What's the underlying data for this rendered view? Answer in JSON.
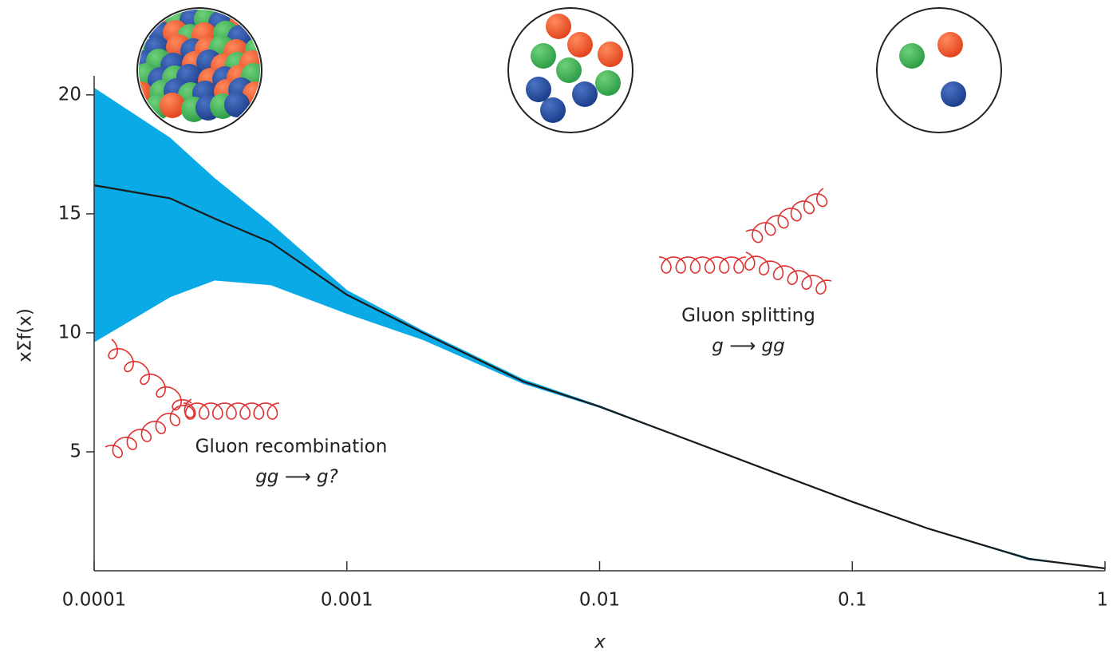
{
  "chart_data": {
    "type": "line",
    "x_label": "x",
    "y_label": "xΣf(x)",
    "x": [
      0.0001,
      0.0002,
      0.0003,
      0.0005,
      0.001,
      0.002,
      0.005,
      0.01,
      0.02,
      0.05,
      0.1,
      0.2,
      0.5,
      1
    ],
    "series": [
      {
        "color": "#1a1a1a",
        "values": [
          16.2,
          15.65,
          14.8,
          13.8,
          11.6,
          10.0,
          7.95,
          6.9,
          5.7,
          4.1,
          2.9,
          1.77,
          0.5,
          0.1
        ],
        "band_color": "#0aaae6",
        "upper": [
          20.3,
          18.2,
          16.5,
          14.6,
          11.8,
          10.1,
          8.05,
          6.95,
          5.72,
          4.12,
          2.92,
          1.8,
          0.55,
          0.1
        ],
        "lower": [
          9.6,
          11.5,
          12.2,
          12.0,
          10.8,
          9.7,
          7.85,
          6.85,
          5.66,
          4.07,
          2.88,
          1.74,
          0.45,
          0.1
        ]
      }
    ],
    "xlog": true,
    "xlim": [
      0.0001,
      1
    ],
    "xticks": [
      0.0001,
      0.001,
      0.01,
      0.1,
      1
    ],
    "ylim": [
      0,
      20.8
    ],
    "yticks": [
      5,
      10,
      15,
      20
    ],
    "annotations": [
      {
        "text": "Gluon recombination",
        "sub": "gg ⟶ g?"
      },
      {
        "text": "Gluon splitting",
        "sub": "g ⟶ gg"
      }
    ]
  }
}
